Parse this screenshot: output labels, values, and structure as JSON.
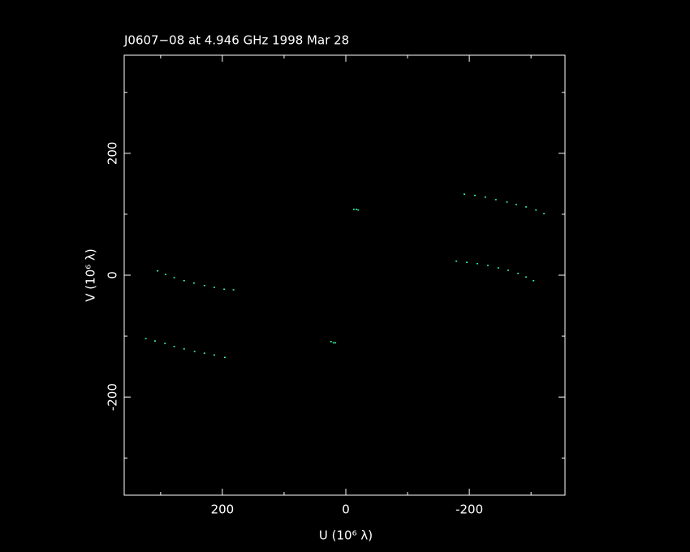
{
  "chart_data": {
    "type": "scatter",
    "title": "J0607−08 at 4.946 GHz 1998 Mar 28",
    "xlabel": "U (10⁶ λ)",
    "ylabel": "V (10⁶ λ)",
    "x": [
      -192,
      -209,
      -226,
      -243,
      -261,
      -276,
      -292,
      -308,
      -321,
      -179,
      -196,
      -213,
      -230,
      -247,
      -263,
      -279,
      -292,
      -304,
      305,
      292,
      278,
      262,
      246,
      229,
      213,
      197,
      182,
      324,
      309,
      293,
      278,
      262,
      245,
      229,
      213,
      196,
      -13,
      -17,
      -20,
      24,
      20,
      17
    ],
    "y": [
      133,
      131,
      128,
      124,
      120,
      116,
      112,
      107,
      101,
      23,
      21,
      19,
      16,
      12,
      8,
      3,
      -3,
      -9,
      7,
      1,
      -4,
      -9,
      -13,
      -17,
      -20,
      -23,
      -24,
      -104,
      -108,
      -112,
      -117,
      -121,
      -125,
      -128,
      -131,
      -135,
      108,
      108,
      107,
      -109,
      -111,
      -111
    ],
    "color": "#33ffaa",
    "xlim": [
      359,
      -355
    ],
    "ylim": [
      -361,
      361
    ],
    "xticks": [
      200,
      0,
      -200
    ],
    "yticks": [
      -200,
      0,
      200
    ],
    "xminorticks": [
      300,
      100,
      -100,
      -300
    ],
    "yminorticks": [
      -300,
      -100,
      100,
      300
    ]
  }
}
